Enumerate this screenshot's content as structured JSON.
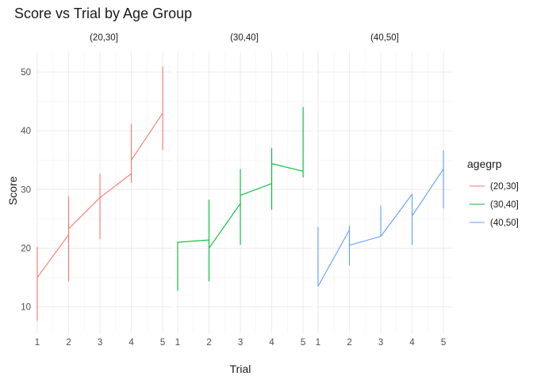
{
  "chart_data": {
    "type": "line",
    "title": "Score vs Trial by Age Group",
    "xlabel": "Trial",
    "ylabel": "Score",
    "x": [
      1,
      2,
      3,
      4,
      5
    ],
    "xlim": [
      0.95,
      5.3
    ],
    "ylim": [
      5.5,
      53.5
    ],
    "x_ticks": [
      1,
      2,
      3,
      4,
      5
    ],
    "y_ticks": [
      10,
      20,
      30,
      40,
      50
    ],
    "grid": true,
    "legend": {
      "title": "agegrp",
      "position": "right",
      "entries": [
        "(20,30]",
        "(30,40]",
        "(40,50]"
      ]
    },
    "series": [
      {
        "name": "(20,30]",
        "color": "#F8766D",
        "points": [
          [
            1,
            7.6
          ],
          [
            1,
            20.2
          ],
          [
            1,
            15.0
          ],
          [
            2,
            22.3
          ],
          [
            2,
            14.4
          ],
          [
            2,
            28.8
          ],
          [
            2,
            23.3
          ],
          [
            3,
            28.6
          ],
          [
            3,
            21.6
          ],
          [
            3,
            32.6
          ],
          [
            3,
            28.6
          ],
          [
            4,
            32.7
          ],
          [
            4,
            31.2
          ],
          [
            4,
            41.1
          ],
          [
            4,
            35.0
          ],
          [
            5,
            43.0
          ],
          [
            5,
            36.8
          ],
          [
            5,
            50.9
          ],
          [
            5,
            43.0
          ]
        ]
      },
      {
        "name": "(30,40]",
        "color": "#00BA38",
        "points": [
          [
            1,
            21.0
          ],
          [
            1,
            12.8
          ],
          [
            1,
            21.0
          ],
          [
            2,
            21.4
          ],
          [
            2,
            14.4
          ],
          [
            2,
            28.2
          ],
          [
            2,
            20.0
          ],
          [
            3,
            27.6
          ],
          [
            3,
            20.6
          ],
          [
            3,
            33.4
          ],
          [
            3,
            29.0
          ],
          [
            4,
            31.0
          ],
          [
            4,
            26.6
          ],
          [
            4,
            37.0
          ],
          [
            4,
            34.4
          ],
          [
            5,
            33.1
          ],
          [
            5,
            32.1
          ],
          [
            5,
            44.0
          ],
          [
            5,
            33.1
          ]
        ]
      },
      {
        "name": "(40,50]",
        "color": "#619CFF",
        "points": [
          [
            1,
            23.6
          ],
          [
            1,
            13.5
          ],
          [
            2,
            23.1
          ],
          [
            2,
            17.1
          ],
          [
            2,
            23.8
          ],
          [
            2,
            20.5
          ],
          [
            3,
            22.0
          ],
          [
            3,
            22.2
          ],
          [
            3,
            27.2
          ],
          [
            3,
            22.0
          ],
          [
            4,
            29.2
          ],
          [
            4,
            20.6
          ],
          [
            4,
            29.2
          ],
          [
            4,
            25.5
          ],
          [
            5,
            33.5
          ],
          [
            5,
            26.8
          ],
          [
            5,
            36.6
          ],
          [
            5,
            33.7
          ]
        ]
      }
    ]
  }
}
